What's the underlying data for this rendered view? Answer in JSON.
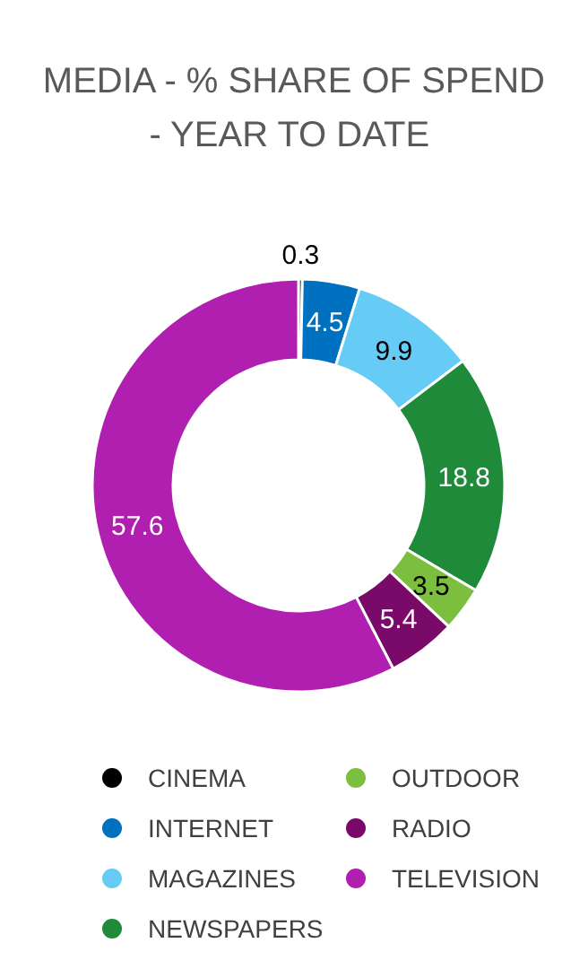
{
  "chart_data": {
    "type": "donut",
    "title": "MEDIA - % SHARE OF SPEND\n-  YEAR TO DATE",
    "categories": [
      "CINEMA",
      "INTERNET",
      "MAGAZINES",
      "NEWSPAPERS",
      "OUTDOOR",
      "RADIO",
      "TELEVISION"
    ],
    "values": [
      0.3,
      4.5,
      9.9,
      18.8,
      3.5,
      5.4,
      57.6
    ],
    "colors": [
      "#000000",
      "#0070c0",
      "#66ccf5",
      "#1e8a3a",
      "#7cbf3f",
      "#7a0a6a",
      "#b01fb0"
    ],
    "data_labels": true,
    "legend": "bottom"
  }
}
